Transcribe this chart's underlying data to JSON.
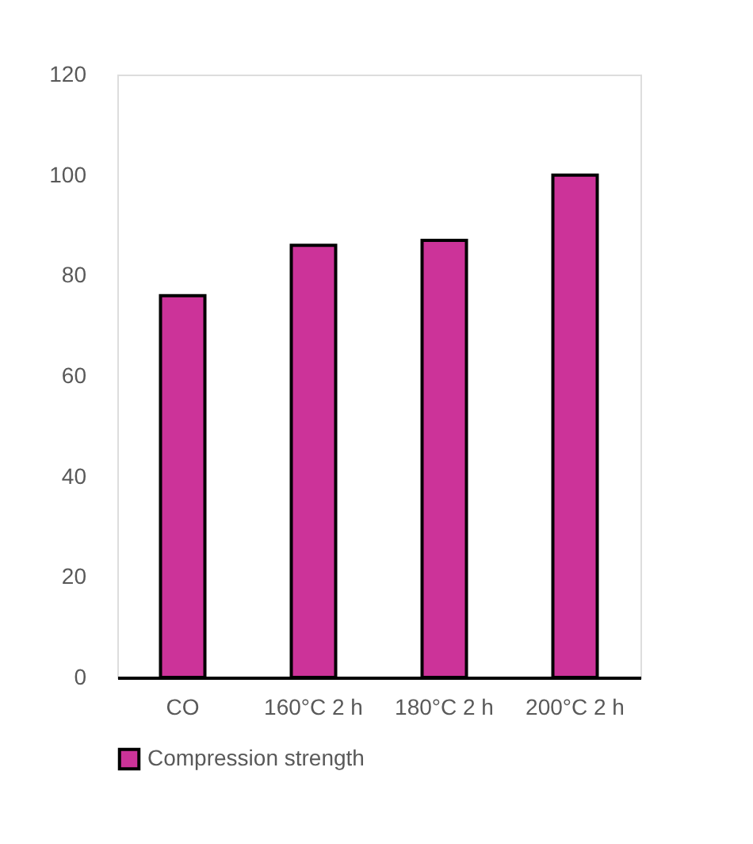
{
  "chart_data": {
    "type": "bar",
    "categories": [
      "CO",
      "160°C 2 h",
      "180°C 2 h",
      "200°C 2 h"
    ],
    "series": [
      {
        "name": "Compression strength",
        "color": "#cc3399",
        "values": [
          76,
          86,
          87,
          100
        ]
      }
    ],
    "ylim": [
      0,
      120
    ],
    "yticks": [
      0,
      20,
      40,
      60,
      80,
      100,
      120
    ],
    "grid": false,
    "legend": "bottom"
  }
}
